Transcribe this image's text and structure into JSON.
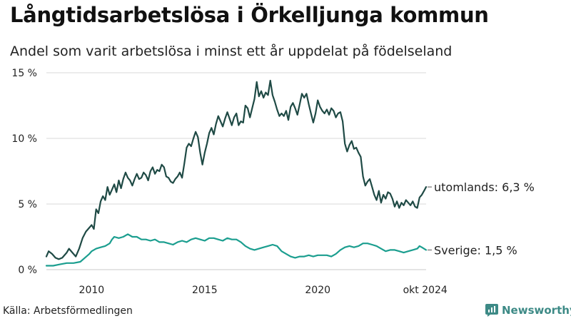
{
  "title": "Långtidsarbetslösa i Örkelljunga kommun",
  "subtitle": "Andel som varit arbetslösa i minst ett år uppdelat på födelseland",
  "source": "Källa: Arbetsförmedlingen",
  "brand": "Newsworthy",
  "colors": {
    "foreign": "#1f4a45",
    "sweden": "#1b9e8f",
    "grid": "#d9d9d9",
    "brand": "#3d8a86"
  },
  "chart_data": {
    "type": "line",
    "title": "Långtidsarbetslösa i Örkelljunga kommun",
    "xlabel": "",
    "ylabel": "",
    "x_range": [
      2008.0,
      2024.79
    ],
    "ylim": [
      0,
      15
    ],
    "y_ticks": [
      0,
      5,
      10,
      15
    ],
    "y_tick_labels": [
      "0 %",
      "5 %",
      "10 %",
      "15 %"
    ],
    "x_ticks": [
      2010,
      2015,
      2020,
      2024.75
    ],
    "x_tick_labels": [
      "2010",
      "2015",
      "2020",
      "okt 2024"
    ],
    "grid": true,
    "series": [
      {
        "name": "utomlands",
        "end_label": "utomlands: 6,3 %",
        "points": [
          [
            2008.0,
            1.0
          ],
          [
            2008.1,
            1.4
          ],
          [
            2008.25,
            1.2
          ],
          [
            2008.4,
            0.9
          ],
          [
            2008.55,
            0.8
          ],
          [
            2008.7,
            0.9
          ],
          [
            2008.9,
            1.3
          ],
          [
            2009.0,
            1.6
          ],
          [
            2009.15,
            1.3
          ],
          [
            2009.3,
            1.0
          ],
          [
            2009.45,
            1.6
          ],
          [
            2009.6,
            2.4
          ],
          [
            2009.75,
            2.9
          ],
          [
            2009.9,
            3.2
          ],
          [
            2010.0,
            3.4
          ],
          [
            2010.1,
            3.1
          ],
          [
            2010.2,
            4.6
          ],
          [
            2010.3,
            4.3
          ],
          [
            2010.4,
            5.2
          ],
          [
            2010.5,
            5.6
          ],
          [
            2010.6,
            5.3
          ],
          [
            2010.7,
            6.3
          ],
          [
            2010.8,
            5.7
          ],
          [
            2010.9,
            6.1
          ],
          [
            2011.0,
            6.5
          ],
          [
            2011.1,
            5.9
          ],
          [
            2011.2,
            6.8
          ],
          [
            2011.3,
            6.2
          ],
          [
            2011.4,
            6.9
          ],
          [
            2011.5,
            7.4
          ],
          [
            2011.6,
            7.0
          ],
          [
            2011.7,
            6.8
          ],
          [
            2011.8,
            6.4
          ],
          [
            2011.9,
            6.9
          ],
          [
            2012.0,
            7.3
          ],
          [
            2012.1,
            6.9
          ],
          [
            2012.2,
            7.0
          ],
          [
            2012.3,
            7.4
          ],
          [
            2012.4,
            7.2
          ],
          [
            2012.5,
            6.8
          ],
          [
            2012.6,
            7.5
          ],
          [
            2012.7,
            7.8
          ],
          [
            2012.8,
            7.3
          ],
          [
            2012.9,
            7.6
          ],
          [
            2013.0,
            7.5
          ],
          [
            2013.1,
            8.0
          ],
          [
            2013.2,
            7.8
          ],
          [
            2013.3,
            7.1
          ],
          [
            2013.4,
            7.0
          ],
          [
            2013.5,
            6.7
          ],
          [
            2013.6,
            6.6
          ],
          [
            2013.7,
            6.9
          ],
          [
            2013.8,
            7.1
          ],
          [
            2013.9,
            7.4
          ],
          [
            2014.0,
            7.0
          ],
          [
            2014.1,
            8.1
          ],
          [
            2014.2,
            9.3
          ],
          [
            2014.3,
            9.6
          ],
          [
            2014.4,
            9.4
          ],
          [
            2014.5,
            10.0
          ],
          [
            2014.6,
            10.5
          ],
          [
            2014.7,
            10.1
          ],
          [
            2014.8,
            8.9
          ],
          [
            2014.9,
            8.0
          ],
          [
            2015.0,
            8.9
          ],
          [
            2015.1,
            9.6
          ],
          [
            2015.2,
            10.4
          ],
          [
            2015.3,
            10.8
          ],
          [
            2015.4,
            10.3
          ],
          [
            2015.5,
            11.1
          ],
          [
            2015.6,
            11.7
          ],
          [
            2015.7,
            11.3
          ],
          [
            2015.8,
            10.9
          ],
          [
            2015.9,
            11.5
          ],
          [
            2016.0,
            12.0
          ],
          [
            2016.1,
            11.5
          ],
          [
            2016.2,
            11.0
          ],
          [
            2016.3,
            11.6
          ],
          [
            2016.4,
            11.9
          ],
          [
            2016.5,
            11.0
          ],
          [
            2016.6,
            11.3
          ],
          [
            2016.7,
            11.2
          ],
          [
            2016.8,
            12.5
          ],
          [
            2016.9,
            12.3
          ],
          [
            2017.0,
            11.6
          ],
          [
            2017.1,
            12.3
          ],
          [
            2017.2,
            13.0
          ],
          [
            2017.3,
            14.3
          ],
          [
            2017.4,
            13.2
          ],
          [
            2017.5,
            13.6
          ],
          [
            2017.6,
            13.1
          ],
          [
            2017.7,
            13.5
          ],
          [
            2017.8,
            13.3
          ],
          [
            2017.9,
            14.4
          ],
          [
            2018.0,
            13.3
          ],
          [
            2018.1,
            12.8
          ],
          [
            2018.2,
            12.2
          ],
          [
            2018.3,
            11.7
          ],
          [
            2018.4,
            11.9
          ],
          [
            2018.5,
            11.7
          ],
          [
            2018.6,
            12.1
          ],
          [
            2018.7,
            11.4
          ],
          [
            2018.8,
            12.4
          ],
          [
            2018.9,
            12.7
          ],
          [
            2019.0,
            12.3
          ],
          [
            2019.1,
            11.8
          ],
          [
            2019.2,
            12.6
          ],
          [
            2019.3,
            13.4
          ],
          [
            2019.4,
            13.1
          ],
          [
            2019.5,
            13.4
          ],
          [
            2019.6,
            12.6
          ],
          [
            2019.7,
            11.9
          ],
          [
            2019.8,
            11.2
          ],
          [
            2019.9,
            11.9
          ],
          [
            2020.0,
            12.9
          ],
          [
            2020.1,
            12.4
          ],
          [
            2020.2,
            12.1
          ],
          [
            2020.3,
            11.9
          ],
          [
            2020.4,
            12.2
          ],
          [
            2020.5,
            11.8
          ],
          [
            2020.6,
            12.3
          ],
          [
            2020.7,
            12.1
          ],
          [
            2020.8,
            11.6
          ],
          [
            2020.9,
            11.9
          ],
          [
            2021.0,
            12.0
          ],
          [
            2021.1,
            11.3
          ],
          [
            2021.2,
            9.6
          ],
          [
            2021.3,
            9.0
          ],
          [
            2021.4,
            9.5
          ],
          [
            2021.5,
            9.8
          ],
          [
            2021.6,
            9.2
          ],
          [
            2021.7,
            9.3
          ],
          [
            2021.8,
            8.9
          ],
          [
            2021.9,
            8.6
          ],
          [
            2022.0,
            7.1
          ],
          [
            2022.1,
            6.4
          ],
          [
            2022.2,
            6.7
          ],
          [
            2022.3,
            6.9
          ],
          [
            2022.4,
            6.3
          ],
          [
            2022.5,
            5.7
          ],
          [
            2022.6,
            5.3
          ],
          [
            2022.7,
            6.0
          ],
          [
            2022.8,
            5.1
          ],
          [
            2022.9,
            5.7
          ],
          [
            2023.0,
            5.4
          ],
          [
            2023.1,
            5.9
          ],
          [
            2023.2,
            5.8
          ],
          [
            2023.3,
            5.4
          ],
          [
            2023.4,
            4.8
          ],
          [
            2023.5,
            5.2
          ],
          [
            2023.6,
            4.7
          ],
          [
            2023.7,
            5.1
          ],
          [
            2023.8,
            4.9
          ],
          [
            2023.9,
            5.3
          ],
          [
            2024.0,
            5.1
          ],
          [
            2024.1,
            4.9
          ],
          [
            2024.2,
            5.2
          ],
          [
            2024.3,
            4.8
          ],
          [
            2024.4,
            4.7
          ],
          [
            2024.5,
            5.5
          ],
          [
            2024.6,
            5.7
          ],
          [
            2024.7,
            6.0
          ],
          [
            2024.79,
            6.3
          ]
        ]
      },
      {
        "name": "Sverige",
        "end_label": "Sverige: 1,5 %",
        "points": [
          [
            2008.0,
            0.3
          ],
          [
            2008.3,
            0.3
          ],
          [
            2008.6,
            0.4
          ],
          [
            2008.9,
            0.5
          ],
          [
            2009.2,
            0.5
          ],
          [
            2009.5,
            0.6
          ],
          [
            2009.7,
            0.9
          ],
          [
            2009.9,
            1.2
          ],
          [
            2010.0,
            1.4
          ],
          [
            2010.2,
            1.6
          ],
          [
            2010.4,
            1.7
          ],
          [
            2010.6,
            1.8
          ],
          [
            2010.8,
            2.0
          ],
          [
            2010.9,
            2.3
          ],
          [
            2011.0,
            2.5
          ],
          [
            2011.2,
            2.4
          ],
          [
            2011.4,
            2.5
          ],
          [
            2011.6,
            2.7
          ],
          [
            2011.8,
            2.5
          ],
          [
            2012.0,
            2.5
          ],
          [
            2012.2,
            2.3
          ],
          [
            2012.4,
            2.3
          ],
          [
            2012.6,
            2.2
          ],
          [
            2012.8,
            2.3
          ],
          [
            2013.0,
            2.1
          ],
          [
            2013.2,
            2.1
          ],
          [
            2013.4,
            2.0
          ],
          [
            2013.6,
            1.9
          ],
          [
            2013.8,
            2.1
          ],
          [
            2014.0,
            2.2
          ],
          [
            2014.2,
            2.1
          ],
          [
            2014.4,
            2.3
          ],
          [
            2014.6,
            2.4
          ],
          [
            2014.8,
            2.3
          ],
          [
            2015.0,
            2.2
          ],
          [
            2015.2,
            2.4
          ],
          [
            2015.4,
            2.4
          ],
          [
            2015.6,
            2.3
          ],
          [
            2015.8,
            2.2
          ],
          [
            2016.0,
            2.4
          ],
          [
            2016.2,
            2.3
          ],
          [
            2016.4,
            2.3
          ],
          [
            2016.6,
            2.1
          ],
          [
            2016.8,
            1.8
          ],
          [
            2017.0,
            1.6
          ],
          [
            2017.2,
            1.5
          ],
          [
            2017.4,
            1.6
          ],
          [
            2017.6,
            1.7
          ],
          [
            2017.8,
            1.8
          ],
          [
            2018.0,
            1.9
          ],
          [
            2018.2,
            1.8
          ],
          [
            2018.4,
            1.4
          ],
          [
            2018.6,
            1.2
          ],
          [
            2018.8,
            1.0
          ],
          [
            2019.0,
            0.9
          ],
          [
            2019.2,
            1.0
          ],
          [
            2019.4,
            1.0
          ],
          [
            2019.6,
            1.1
          ],
          [
            2019.8,
            1.0
          ],
          [
            2020.0,
            1.1
          ],
          [
            2020.2,
            1.1
          ],
          [
            2020.4,
            1.1
          ],
          [
            2020.6,
            1.0
          ],
          [
            2020.8,
            1.2
          ],
          [
            2021.0,
            1.5
          ],
          [
            2021.2,
            1.7
          ],
          [
            2021.4,
            1.8
          ],
          [
            2021.6,
            1.7
          ],
          [
            2021.8,
            1.8
          ],
          [
            2022.0,
            2.0
          ],
          [
            2022.2,
            2.0
          ],
          [
            2022.4,
            1.9
          ],
          [
            2022.6,
            1.8
          ],
          [
            2022.8,
            1.6
          ],
          [
            2023.0,
            1.4
          ],
          [
            2023.2,
            1.5
          ],
          [
            2023.4,
            1.5
          ],
          [
            2023.6,
            1.4
          ],
          [
            2023.8,
            1.3
          ],
          [
            2024.0,
            1.4
          ],
          [
            2024.2,
            1.5
          ],
          [
            2024.4,
            1.6
          ],
          [
            2024.5,
            1.8
          ],
          [
            2024.6,
            1.7
          ],
          [
            2024.79,
            1.5
          ]
        ]
      }
    ]
  }
}
